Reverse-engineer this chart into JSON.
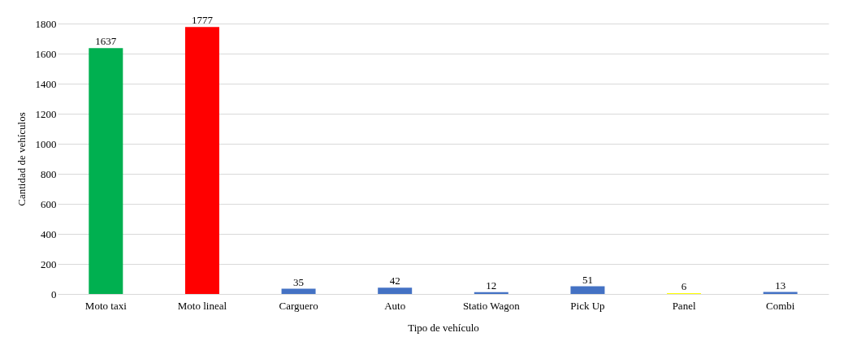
{
  "chart_data": {
    "type": "bar",
    "xlabel": "Tipo de vehículo",
    "ylabel": "Cantidad de vehículos",
    "categories": [
      "Moto taxi",
      "Moto lineal",
      "Carguero",
      "Auto",
      "Statio Wagon",
      "Pick Up",
      "Panel",
      "Combi"
    ],
    "values": [
      1637,
      1777,
      35,
      42,
      12,
      51,
      6,
      13
    ],
    "colors": [
      "#00b050",
      "#ff0000",
      "#4472c4",
      "#4472c4",
      "#4472c4",
      "#4472c4",
      "#ffff00",
      "#4472c4"
    ],
    "ylim": [
      0,
      1800
    ],
    "yticks": [
      0,
      200,
      400,
      600,
      800,
      1000,
      1200,
      1400,
      1600,
      1800
    ],
    "grid": "y",
    "data_labels": true
  }
}
